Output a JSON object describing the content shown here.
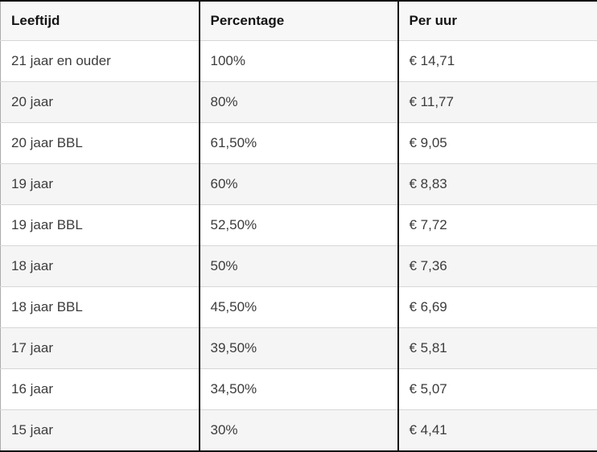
{
  "table": {
    "columns": [
      {
        "label": "Leeftijd"
      },
      {
        "label": "Percentage"
      },
      {
        "label": "Per uur"
      }
    ],
    "rows": [
      [
        "21 jaar en ouder",
        "100%",
        "€ 14,71"
      ],
      [
        "20 jaar",
        "80%",
        "€ 11,77"
      ],
      [
        "20 jaar BBL",
        "61,50%",
        "€ 9,05"
      ],
      [
        "19 jaar",
        "60%",
        "€ 8,83"
      ],
      [
        "19 jaar BBL",
        "52,50%",
        "€ 7,72"
      ],
      [
        "18 jaar",
        "50%",
        "€ 7,36"
      ],
      [
        "18 jaar BBL",
        "45,50%",
        "€ 6,69"
      ],
      [
        "17 jaar",
        "39,50%",
        "€ 5,81"
      ],
      [
        "16 jaar",
        "34,50%",
        "€ 5,07"
      ],
      [
        "15 jaar",
        "30%",
        "€ 4,41"
      ]
    ]
  },
  "colors": {
    "border_strong": "#111111",
    "border_left_edge": "#ababab",
    "row_separator": "#d6d6d6",
    "header_bg": "#f7f7f7",
    "stripe_bg": "#f5f5f5",
    "header_text": "#141414",
    "cell_text": "#3c3c3c",
    "page_bg": "#ffffff"
  }
}
